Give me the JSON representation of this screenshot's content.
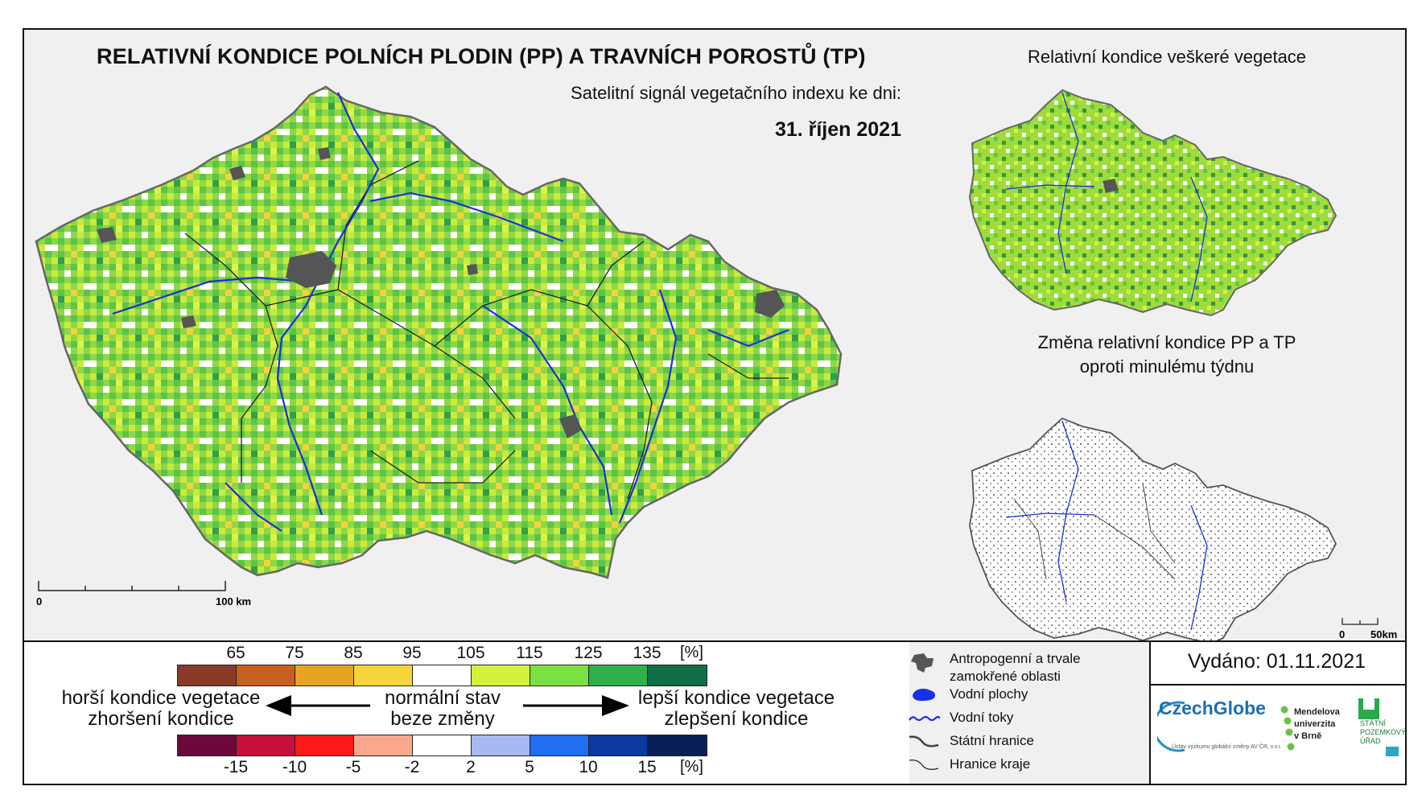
{
  "header": {
    "title": "RELATIVNÍ KONDICE POLNÍCH PLODIN (PP) A TRAVNÍCH POROSTŮ (TP)",
    "subtitle": "Satelitní signál vegetačního indexu ke dni:",
    "date": "31. říjen 2021"
  },
  "main_map": {
    "scale_start": "0",
    "scale_end": "100 km"
  },
  "inset_top": {
    "title": "Relativní kondice veškeré vegetace"
  },
  "inset_bottom": {
    "title_line1": "Změna relativní kondice PP a TP",
    "title_line2": "oproti minulému týdnu",
    "scale_start": "0",
    "scale_end": "50km"
  },
  "legend_condition": {
    "ticks": [
      "65",
      "75",
      "85",
      "95",
      "105",
      "115",
      "125",
      "135"
    ],
    "unit": "[%]",
    "colors": [
      "#8b3a2a",
      "#c7601e",
      "#e8a323",
      "#f5d53a",
      "#ffffff",
      "#d4f03a",
      "#7be041",
      "#2fb04a",
      "#0f6e46"
    ]
  },
  "legend_change": {
    "ticks": [
      "-15",
      "-10",
      "-5",
      "-2",
      "2",
      "5",
      "10",
      "15"
    ],
    "unit": "[%]",
    "colors": [
      "#6b0a3a",
      "#c4103b",
      "#ff1a1a",
      "#f9a88e",
      "#ffffff",
      "#a8b8f0",
      "#1f6ff0",
      "#0a3aa0",
      "#0a1f55"
    ]
  },
  "legend_text": {
    "worse_line1": "horší kondice vegetace",
    "worse_line2": "zhoršení kondice",
    "normal_line1": "normální stav",
    "normal_line2": "beze změny",
    "better_line1": "lepší kondice vegetace",
    "better_line2": "zlepšení kondice"
  },
  "legend_symbols": {
    "anthropogenic_line1": "Antropogenní a trvale",
    "anthropogenic_line2": "zamokřené oblasti",
    "water_bodies": "Vodní plochy",
    "rivers": "Vodní toky",
    "state_border": "Státní hranice",
    "region_border": "Hranice kraje"
  },
  "issued": {
    "label": "Vydáno: 01.11.2021"
  },
  "logos": {
    "czechglobe": "CzechGlobe",
    "czechglobe_sub": "Ústav výzkumu globální změny AV ČR, v.v.i.",
    "mendel_line1": "Mendelova",
    "mendel_line2": "univerzita",
    "mendel_line3": "v Brně",
    "spu_line1": "STÁTNÍ",
    "spu_line2": "POZEMKOVÝ",
    "spu_line3": "ÚŘAD"
  }
}
